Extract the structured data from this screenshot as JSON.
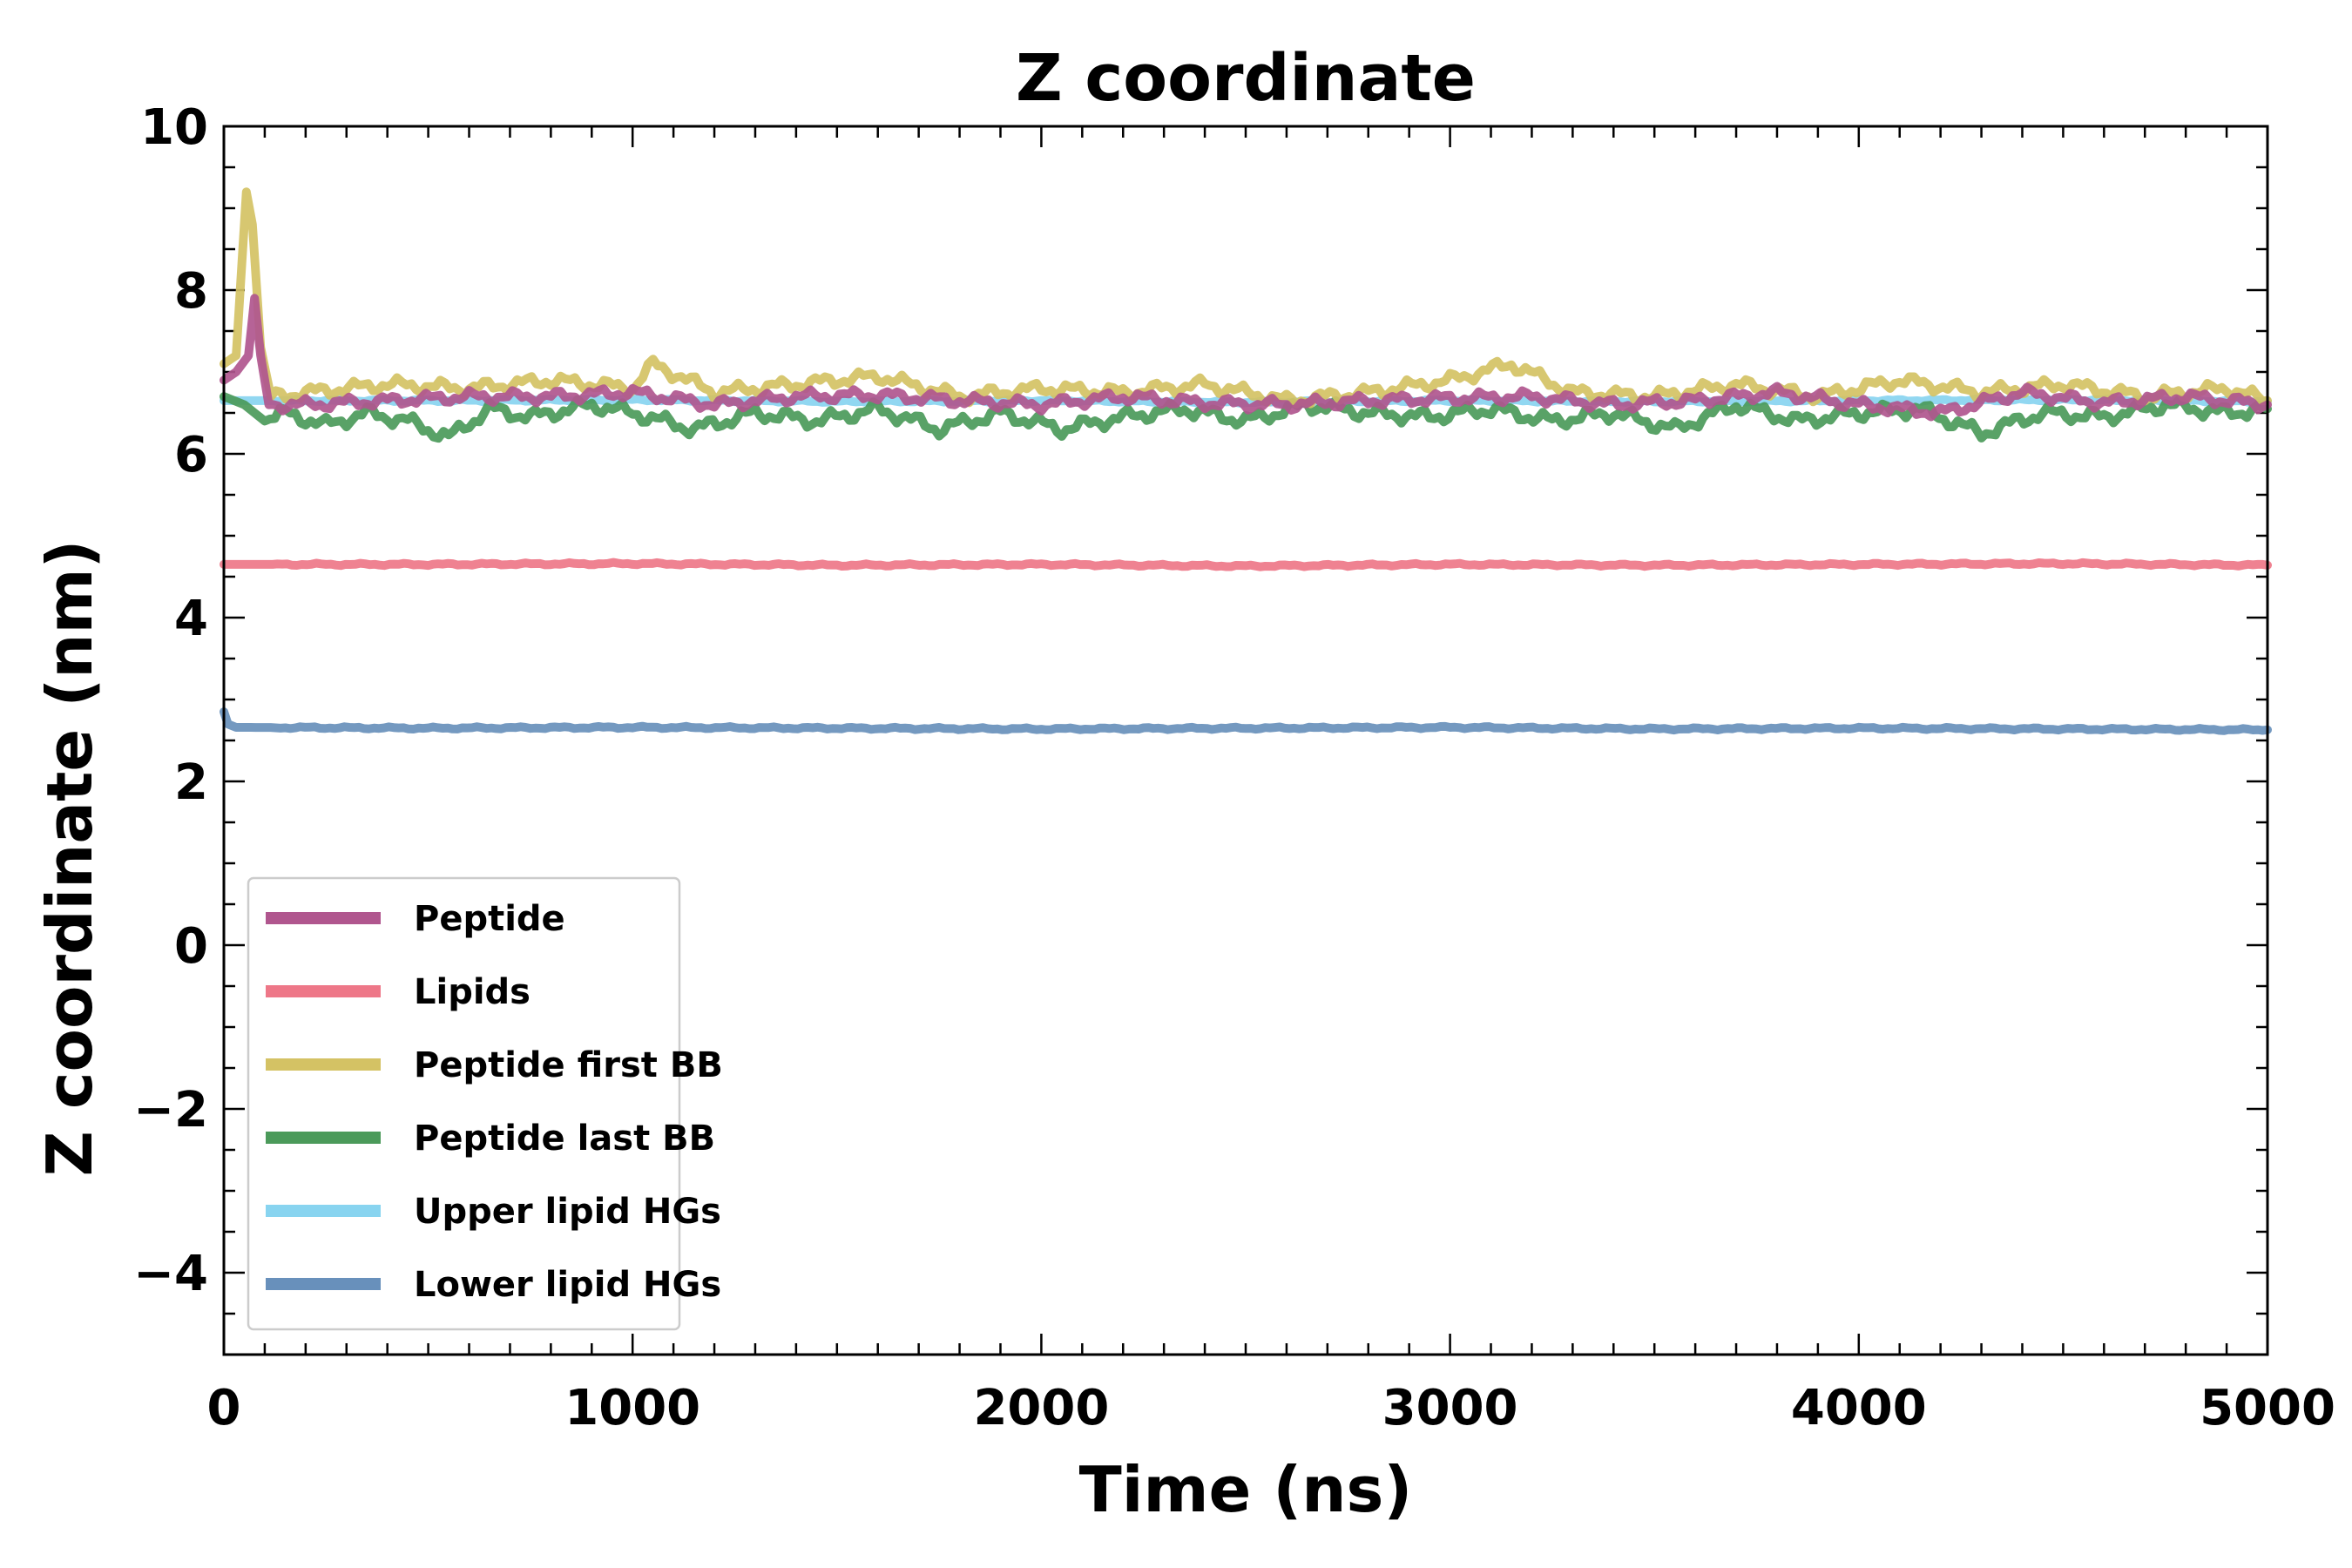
{
  "chart_data": {
    "type": "line",
    "title": "Z coordinate",
    "xlabel": "Time (ns)",
    "ylabel": "Z coordinate (nm)",
    "xlim": [
      0,
      5000
    ],
    "ylim": [
      -5,
      10
    ],
    "xticks": [
      0,
      1000,
      2000,
      3000,
      4000,
      5000
    ],
    "xtick_labels": [
      "0",
      "1000",
      "2000",
      "3000",
      "4000",
      "5000"
    ],
    "yticks": [
      -4,
      -2,
      0,
      2,
      4,
      6,
      8,
      10
    ],
    "ytick_labels": [
      "−4",
      "−2",
      "0",
      "2",
      "4",
      "6",
      "8",
      "10"
    ],
    "grid": false,
    "legend_position": "lower-left",
    "series": [
      {
        "name": "Peptide",
        "color": "#b0568e",
        "x": [
          0,
          30,
          60,
          75,
          90,
          110,
          200,
          400,
          600,
          800,
          1000,
          1200,
          1400,
          1600,
          1800,
          2000,
          2200,
          2400,
          2600,
          2800,
          3000,
          3200,
          3400,
          3600,
          3800,
          4000,
          4200,
          4400,
          4600,
          4800,
          5000
        ],
        "y": [
          6.9,
          7.0,
          7.2,
          7.9,
          7.2,
          6.6,
          6.6,
          6.65,
          6.7,
          6.7,
          6.75,
          6.6,
          6.7,
          6.72,
          6.65,
          6.6,
          6.7,
          6.62,
          6.6,
          6.65,
          6.68,
          6.7,
          6.6,
          6.65,
          6.75,
          6.6,
          6.5,
          6.75,
          6.62,
          6.7,
          6.6
        ]
      },
      {
        "name": "Lipids",
        "color": "#ee7788",
        "x": [
          0,
          500,
          1000,
          1500,
          2000,
          2500,
          3000,
          3500,
          4000,
          4500,
          5000
        ],
        "y": [
          4.65,
          4.65,
          4.66,
          4.64,
          4.65,
          4.63,
          4.65,
          4.64,
          4.65,
          4.66,
          4.64
        ]
      },
      {
        "name": "Peptide first BB",
        "color": "#d4c264",
        "x": [
          0,
          30,
          55,
          70,
          90,
          115,
          200,
          400,
          600,
          800,
          1000,
          1050,
          1200,
          1400,
          1600,
          1800,
          2000,
          2200,
          2400,
          2600,
          2800,
          3000,
          3150,
          3300,
          3500,
          3700,
          3900,
          4100,
          4300,
          4500,
          4700,
          4900,
          5000
        ],
        "y": [
          7.1,
          7.2,
          9.2,
          8.8,
          7.3,
          6.7,
          6.75,
          6.85,
          6.8,
          6.9,
          6.8,
          7.1,
          6.75,
          6.85,
          6.95,
          6.7,
          6.8,
          6.75,
          6.85,
          6.65,
          6.75,
          6.9,
          7.1,
          6.75,
          6.7,
          6.85,
          6.7,
          6.9,
          6.75,
          6.85,
          6.7,
          6.8,
          6.65
        ]
      },
      {
        "name": "Peptide last BB",
        "color": "#4b9a5a",
        "x": [
          0,
          50,
          100,
          150,
          250,
          350,
          450,
          550,
          650,
          750,
          900,
          1000,
          1150,
          1300,
          1450,
          1600,
          1750,
          1900,
          2050,
          2200,
          2350,
          2500,
          2650,
          2800,
          2950,
          3100,
          3250,
          3400,
          3550,
          3700,
          3850,
          4000,
          4150,
          4300,
          4450,
          4600,
          4750,
          4900,
          5000
        ],
        "y": [
          6.7,
          6.6,
          6.4,
          6.5,
          6.35,
          6.5,
          6.4,
          6.2,
          6.55,
          6.45,
          6.6,
          6.5,
          6.3,
          6.5,
          6.4,
          6.55,
          6.3,
          6.5,
          6.3,
          6.45,
          6.55,
          6.4,
          6.6,
          6.5,
          6.45,
          6.55,
          6.4,
          6.5,
          6.3,
          6.6,
          6.4,
          6.5,
          6.55,
          6.25,
          6.5,
          6.45,
          6.6,
          6.5,
          6.55
        ]
      },
      {
        "name": "Upper lipid HGs",
        "color": "#88d4f0",
        "x": [
          0,
          500,
          1000,
          1500,
          2000,
          2500,
          3000,
          3500,
          4000,
          4500,
          5000
        ],
        "y": [
          6.65,
          6.65,
          6.66,
          6.64,
          6.65,
          6.63,
          6.65,
          6.64,
          6.65,
          6.66,
          6.64
        ]
      },
      {
        "name": "Lower lipid HGs",
        "color": "#6890bb",
        "x": [
          0,
          10,
          30,
          500,
          1000,
          1500,
          2000,
          2500,
          3000,
          3500,
          4000,
          4500,
          5000
        ],
        "y": [
          2.85,
          2.7,
          2.66,
          2.65,
          2.66,
          2.65,
          2.64,
          2.65,
          2.66,
          2.64,
          2.65,
          2.64,
          2.63
        ]
      }
    ]
  }
}
